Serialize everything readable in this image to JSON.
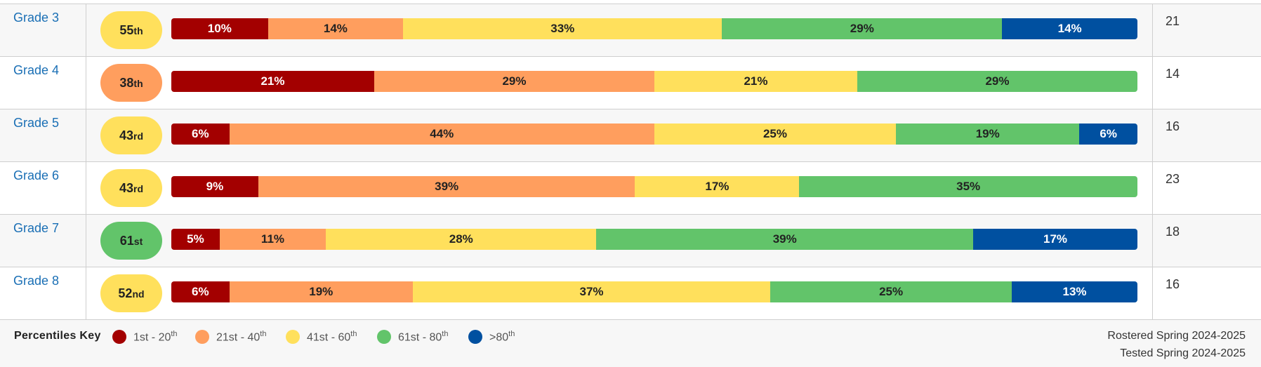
{
  "colors": {
    "1st - 20th": "#a30000",
    "21st - 40th": "#ff9e5e",
    "41st - 60th": "#ffe05c",
    "61st - 80th": "#62c46a",
    ">80th": "#0050a0"
  },
  "chart_data": {
    "type": "bar",
    "stacked": true,
    "categories": [
      "Grade 3",
      "Grade 4",
      "Grade 5",
      "Grade 6",
      "Grade 7",
      "Grade 8"
    ],
    "percentile": [
      {
        "num": "55",
        "suffix": "th",
        "band": "41st - 60th"
      },
      {
        "num": "38",
        "suffix": "th",
        "band": "21st - 40th"
      },
      {
        "num": "43",
        "suffix": "rd",
        "band": "41st - 60th"
      },
      {
        "num": "43",
        "suffix": "rd",
        "band": "41st - 60th"
      },
      {
        "num": "61",
        "suffix": "st",
        "band": "61st - 80th"
      },
      {
        "num": "52",
        "suffix": "nd",
        "band": "41st - 60th"
      }
    ],
    "series": [
      {
        "name": "1st - 20th",
        "values": [
          10,
          21,
          6,
          9,
          5,
          6
        ]
      },
      {
        "name": "21st - 40th",
        "values": [
          14,
          29,
          44,
          39,
          11,
          19
        ]
      },
      {
        "name": "41st - 60th",
        "values": [
          33,
          21,
          25,
          17,
          28,
          37
        ]
      },
      {
        "name": "61st - 80th",
        "values": [
          29,
          29,
          19,
          35,
          39,
          25
        ]
      },
      {
        "name": ">80th",
        "values": [
          14,
          0,
          6,
          0,
          17,
          13
        ]
      }
    ],
    "counts": [
      "21",
      "14",
      "16",
      "23",
      "18",
      "16"
    ],
    "legend": {
      "title": "Percentiles Key",
      "items": [
        {
          "base": "1st - 20",
          "sup": "th"
        },
        {
          "base": "21st - 40",
          "sup": "th"
        },
        {
          "base": "41st - 60",
          "sup": "th"
        },
        {
          "base": "61st - 80",
          "sup": "th"
        },
        {
          "base": ">80",
          "sup": "th"
        }
      ]
    }
  },
  "footer": {
    "rostered": "Rostered Spring 2024-2025",
    "tested": "Tested Spring 2024-2025"
  }
}
